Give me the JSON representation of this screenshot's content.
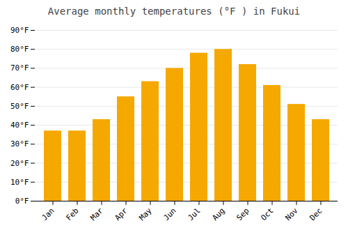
{
  "chart_data": {
    "type": "bar",
    "title": "Average monthly temperatures (°F ) in Fukui",
    "categories": [
      "Jan",
      "Feb",
      "Mar",
      "Apr",
      "May",
      "Jun",
      "Jul",
      "Aug",
      "Sep",
      "Oct",
      "Nov",
      "Dec"
    ],
    "values": [
      37,
      37,
      43,
      55,
      63,
      70,
      78,
      80,
      72,
      61,
      51,
      43
    ],
    "color": "#F5A800",
    "ylim": [
      0,
      90
    ],
    "yticks": [
      {
        "value": 0,
        "label": "0°F"
      },
      {
        "value": 10,
        "label": "10°F"
      },
      {
        "value": 20,
        "label": "20°F"
      },
      {
        "value": 30,
        "label": "30°F"
      },
      {
        "value": 40,
        "label": "40°F"
      },
      {
        "value": 50,
        "label": "50°F"
      },
      {
        "value": 60,
        "label": "60°F"
      },
      {
        "value": 70,
        "label": "70°F"
      },
      {
        "value": 80,
        "label": "80°F"
      },
      {
        "value": 90,
        "label": "90°F"
      }
    ],
    "grid": true
  }
}
